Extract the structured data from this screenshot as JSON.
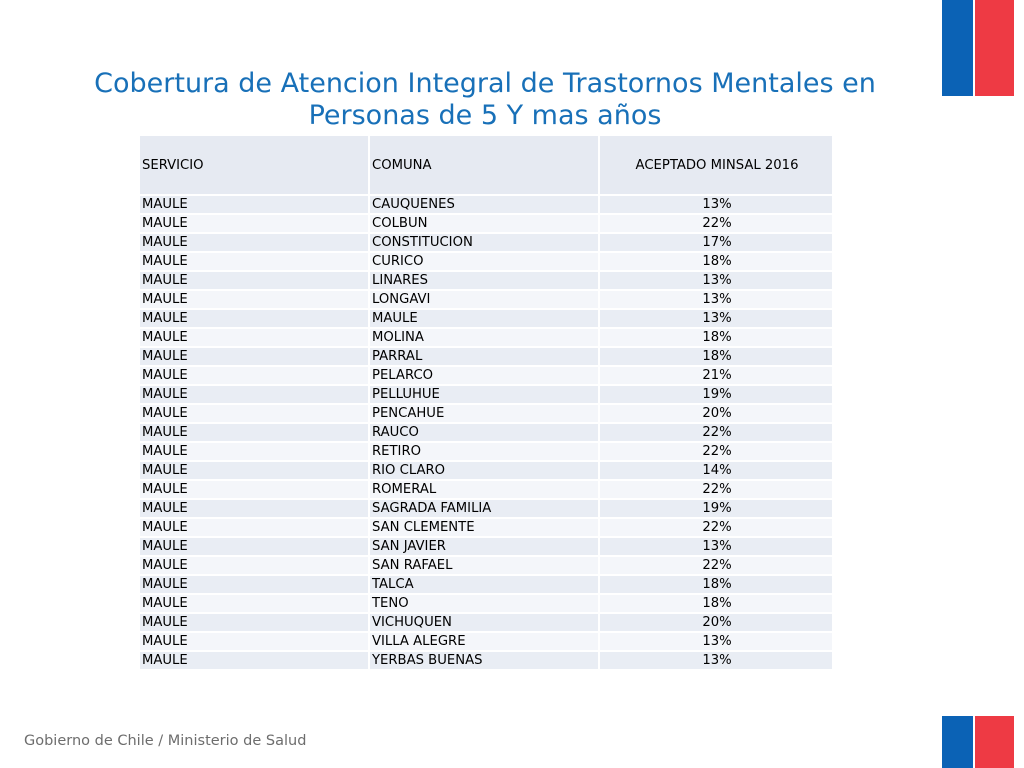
{
  "title": "Cobertura de Atencion Integral de Trastornos Mentales en Personas de 5 Y mas años",
  "table": {
    "headers": [
      "SERVICIO",
      "COMUNA",
      "ACEPTADO MINSAL 2016"
    ],
    "rows": [
      [
        "MAULE",
        "CAUQUENES",
        "13%"
      ],
      [
        "MAULE",
        "COLBUN",
        "22%"
      ],
      [
        "MAULE",
        "CONSTITUCION",
        "17%"
      ],
      [
        "MAULE",
        "CURICO",
        "18%"
      ],
      [
        "MAULE",
        "LINARES",
        "13%"
      ],
      [
        "MAULE",
        "LONGAVI",
        "13%"
      ],
      [
        "MAULE",
        "MAULE",
        "13%"
      ],
      [
        "MAULE",
        "MOLINA",
        "18%"
      ],
      [
        "MAULE",
        "PARRAL",
        "18%"
      ],
      [
        "MAULE",
        "PELARCO",
        "21%"
      ],
      [
        "MAULE",
        "PELLUHUE",
        "19%"
      ],
      [
        "MAULE",
        "PENCAHUE",
        "20%"
      ],
      [
        "MAULE",
        "RAUCO",
        "22%"
      ],
      [
        "MAULE",
        "RETIRO",
        "22%"
      ],
      [
        "MAULE",
        "RIO CLARO",
        "14%"
      ],
      [
        "MAULE",
        "ROMERAL",
        "22%"
      ],
      [
        "MAULE",
        "SAGRADA FAMILIA",
        "19%"
      ],
      [
        "MAULE",
        "SAN CLEMENTE",
        "22%"
      ],
      [
        "MAULE",
        "SAN JAVIER",
        "13%"
      ],
      [
        "MAULE",
        "SAN RAFAEL",
        "22%"
      ],
      [
        "MAULE",
        "TALCA",
        "18%"
      ],
      [
        "MAULE",
        "TENO",
        "18%"
      ],
      [
        "MAULE",
        "VICHUQUEN",
        "20%"
      ],
      [
        "MAULE",
        "VILLA ALEGRE",
        "13%"
      ],
      [
        "MAULE",
        "YERBAS BUENAS",
        "13%"
      ]
    ]
  },
  "footer": "Gobierno de Chile / Ministerio de Salud",
  "colors": {
    "title": "#1870b8",
    "flag_blue": "#0b62b5",
    "flag_red": "#ee3a44",
    "cell_bg": "#e9edf4"
  }
}
